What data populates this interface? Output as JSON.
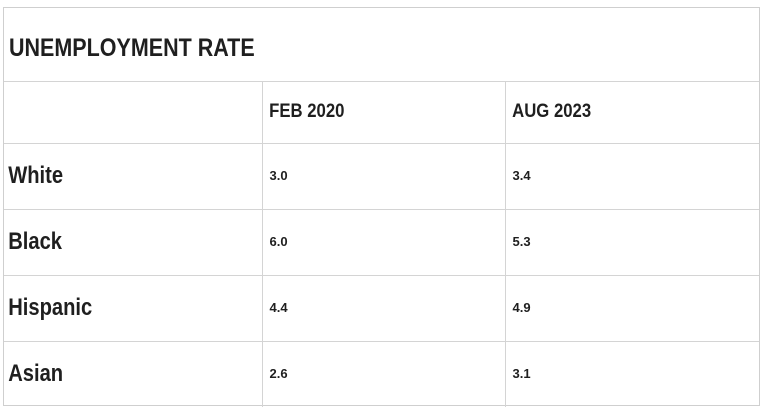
{
  "title": "UNEMPLOYMENT RATE",
  "columns": [
    "",
    "FEB 2020",
    "AUG 2023"
  ],
  "rows": [
    {
      "label": "White",
      "values": [
        "3.0",
        "3.4"
      ]
    },
    {
      "label": "Black",
      "values": [
        "6.0",
        "5.3"
      ]
    },
    {
      "label": "Hispanic",
      "values": [
        "4.4",
        "4.9"
      ]
    },
    {
      "label": "Asian",
      "values": [
        "2.6",
        "3.1"
      ]
    }
  ],
  "chart_data": {
    "type": "table",
    "title": "UNEMPLOYMENT RATE",
    "categories": [
      "White",
      "Black",
      "Hispanic",
      "Asian"
    ],
    "series": [
      {
        "name": "FEB 2020",
        "values": [
          3.0,
          6.0,
          4.4,
          2.6
        ]
      },
      {
        "name": "AUG 2023",
        "values": [
          3.4,
          5.3,
          4.9,
          3.1
        ]
      }
    ]
  }
}
